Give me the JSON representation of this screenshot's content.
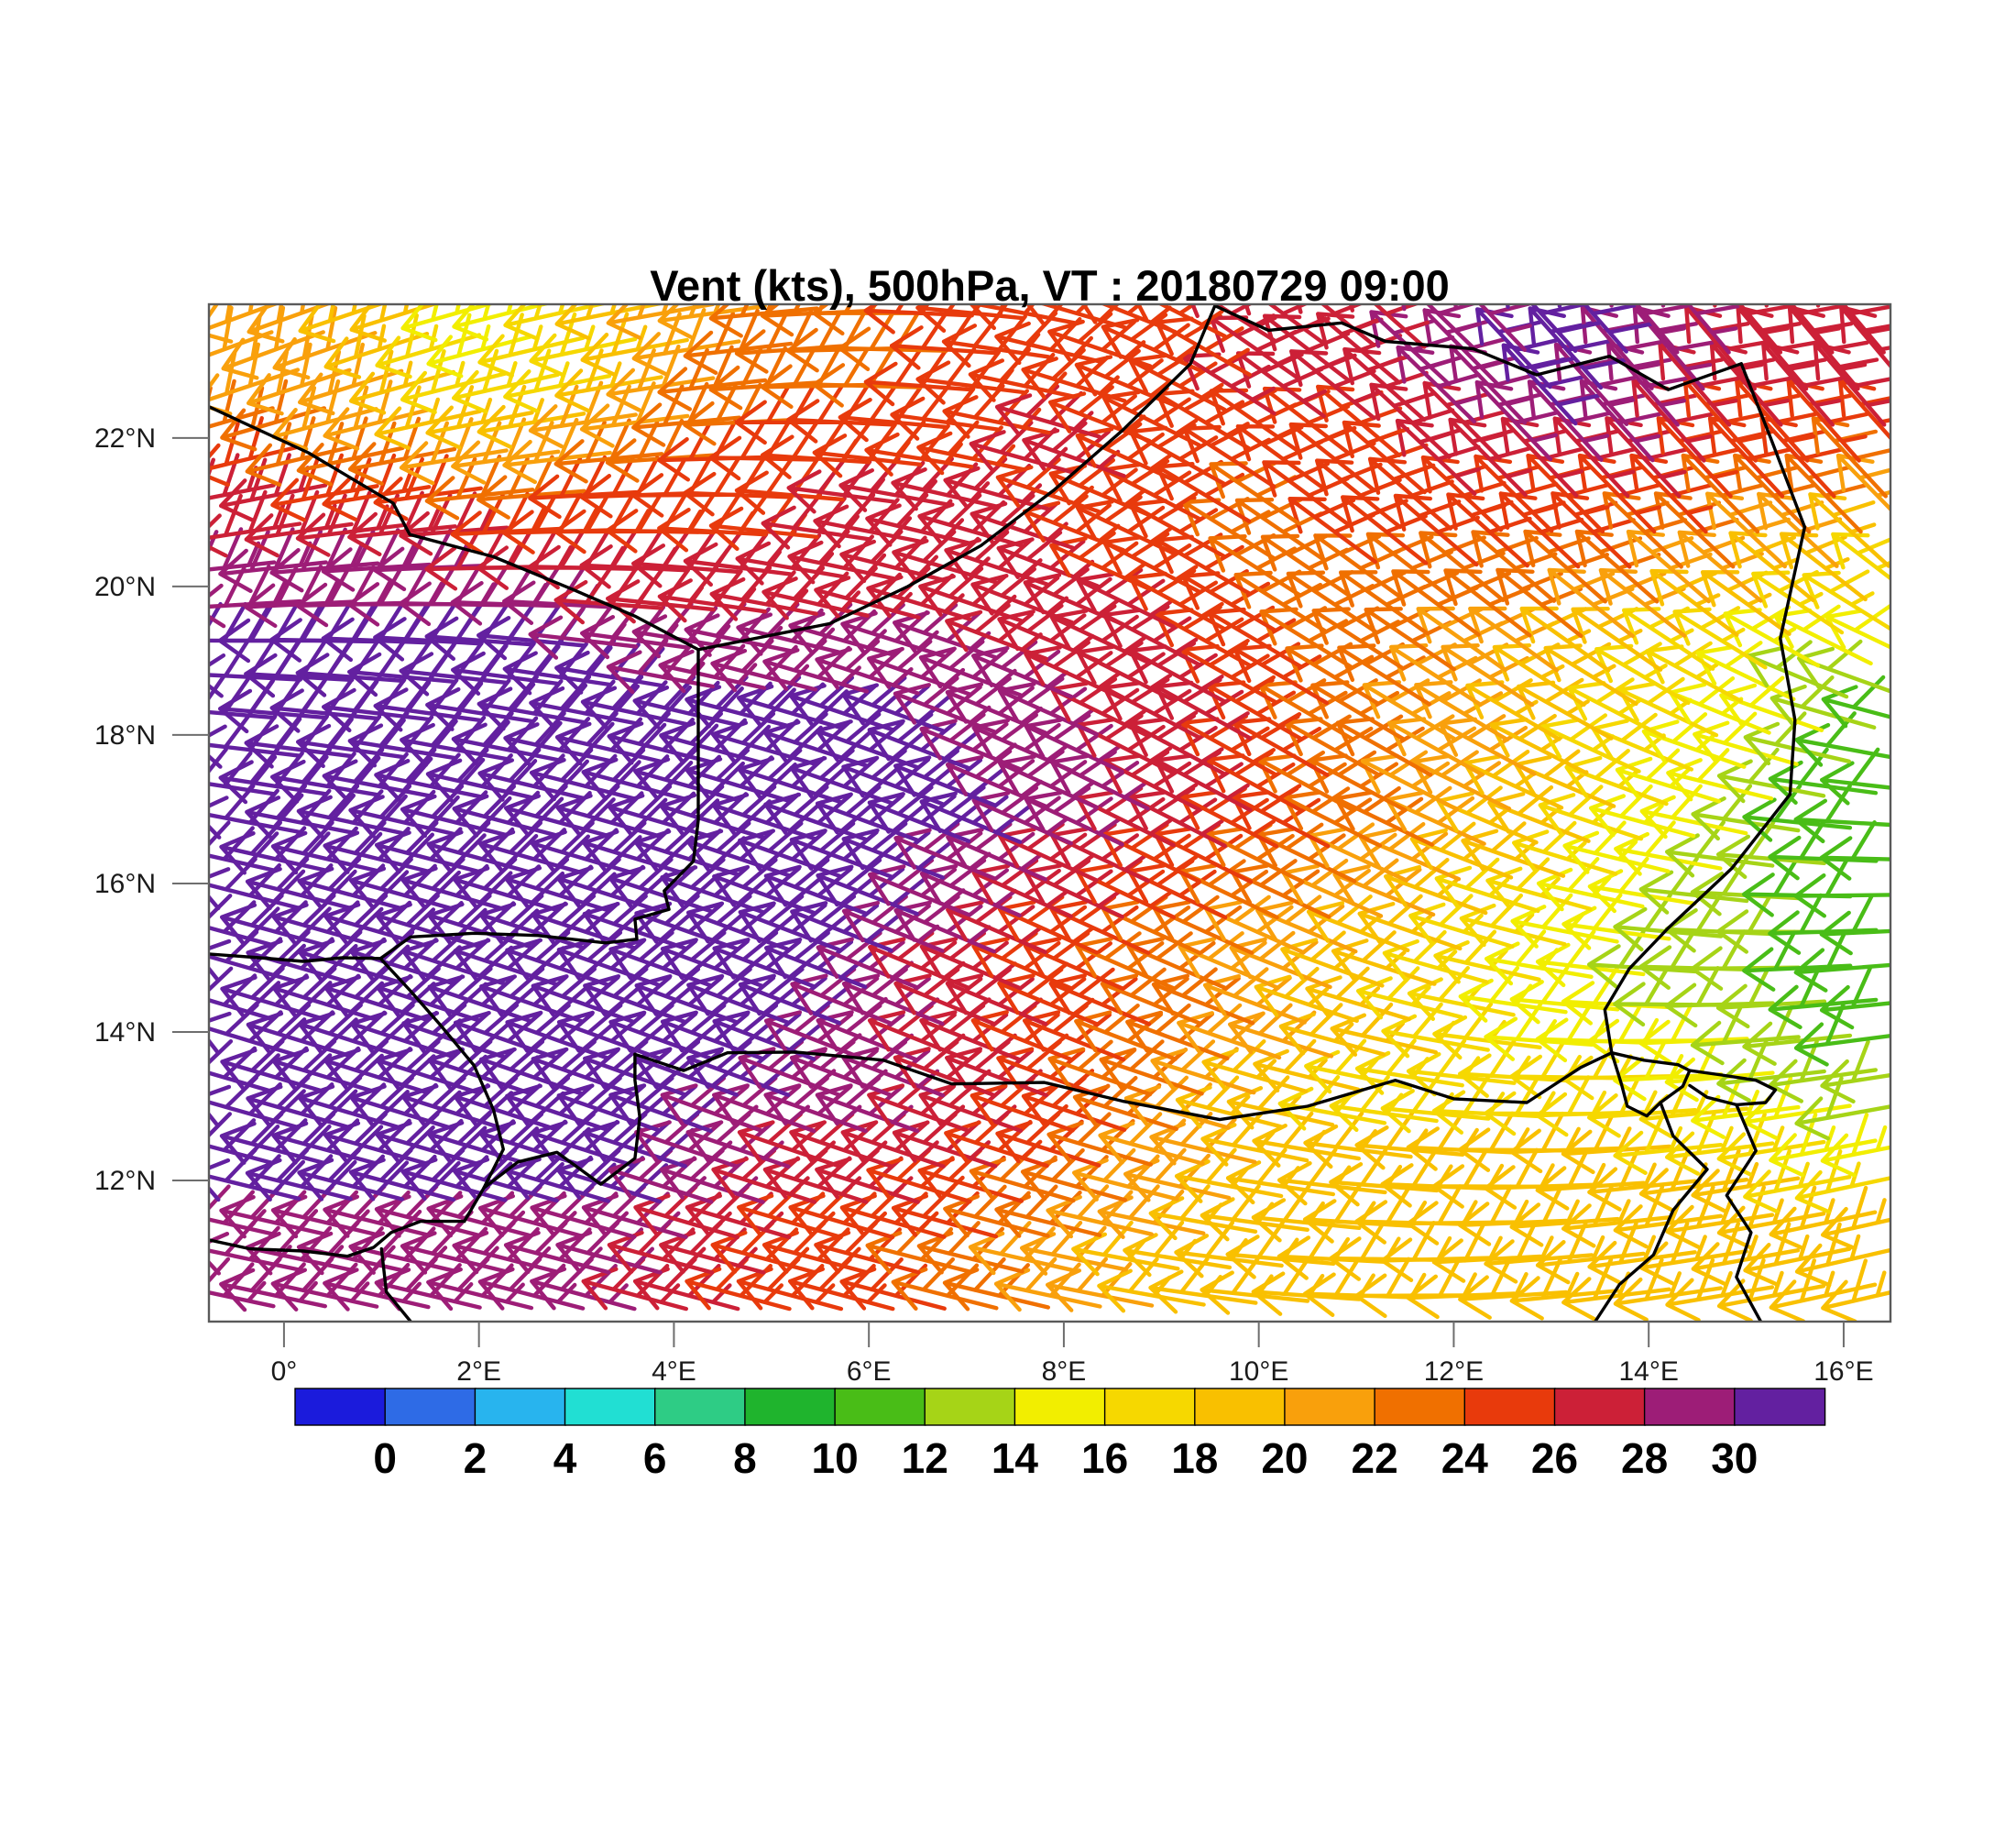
{
  "title": "Vent (kts), 500hPa, VT : 20180729  09:00",
  "chart_data": {
    "type": "wind_barb_map",
    "title": "Vent (kts), 500hPa, VT : 20180729  09:00",
    "variable": "Vent",
    "units": "kts",
    "level": "500hPa",
    "valid_time": "20180729 09:00",
    "lon_range": [
      -0.77,
      16.48
    ],
    "lat_range": [
      10.1,
      23.8
    ],
    "x_ticks": {
      "lons": [
        0,
        2,
        4,
        6,
        8,
        10,
        12,
        14,
        16
      ],
      "labels": [
        "0°",
        "2°E",
        "4°E",
        "6°E",
        "8°E",
        "10°E",
        "12°E",
        "14°E",
        "16°E"
      ]
    },
    "y_ticks": {
      "lats": [
        12,
        14,
        16,
        18,
        20,
        22
      ],
      "labels": [
        "12°N",
        "14°N",
        "16°N",
        "18°N",
        "20°N",
        "22°N"
      ]
    },
    "colorbar": {
      "boundary_labels": [
        "0",
        "2",
        "4",
        "6",
        "8",
        "10",
        "12",
        "14",
        "16",
        "18",
        "20",
        "22",
        "24",
        "26",
        "28",
        "30"
      ],
      "colors": [
        "#1b1bdc",
        "#2e6be6",
        "#28b4ee",
        "#21dfd3",
        "#2ecc85",
        "#1fb42d",
        "#49bd17",
        "#a6d417",
        "#f2ee00",
        "#f6d800",
        "#f9c000",
        "#f9a00c",
        "#f07000",
        "#e83a0c",
        "#cc2037",
        "#9d1d77",
        "#6320a0"
      ],
      "bin_width": 2
    },
    "grid": {
      "lons": [
        0,
        1,
        2,
        3,
        4,
        5,
        6,
        7,
        8,
        9,
        10,
        11,
        12,
        13,
        14,
        15,
        16
      ],
      "lats": [
        23,
        22,
        21,
        20,
        19,
        18,
        17,
        16,
        15,
        14,
        13,
        12,
        11
      ],
      "speed_kts": [
        [
          21,
          19,
          15,
          17,
          21,
          23,
          23,
          25,
          25,
          25,
          27,
          27,
          29,
          31,
          29,
          27,
          27
        ],
        [
          23,
          21,
          19,
          21,
          23,
          25,
          25,
          25,
          27,
          25,
          25,
          25,
          27,
          29,
          27,
          25,
          25
        ],
        [
          27,
          27,
          25,
          25,
          25,
          25,
          27,
          27,
          25,
          25,
          23,
          25,
          25,
          25,
          25,
          23,
          21
        ],
        [
          29,
          29,
          29,
          27,
          27,
          27,
          27,
          27,
          27,
          25,
          23,
          23,
          23,
          23,
          21,
          19,
          17
        ],
        [
          31,
          31,
          31,
          31,
          29,
          29,
          29,
          29,
          27,
          27,
          25,
          23,
          21,
          19,
          17,
          15,
          13
        ],
        [
          31,
          31,
          31,
          31,
          31,
          31,
          31,
          29,
          29,
          27,
          25,
          23,
          21,
          19,
          17,
          15,
          11
        ],
        [
          31,
          31,
          31,
          31,
          31,
          31,
          31,
          31,
          29,
          27,
          25,
          23,
          21,
          19,
          15,
          13,
          11
        ],
        [
          31,
          31,
          31,
          31,
          31,
          31,
          31,
          29,
          27,
          25,
          23,
          21,
          19,
          17,
          15,
          13,
          11
        ],
        [
          31,
          31,
          31,
          31,
          31,
          31,
          29,
          27,
          25,
          23,
          21,
          19,
          17,
          15,
          13,
          13,
          11
        ],
        [
          31,
          31,
          31,
          31,
          31,
          31,
          29,
          27,
          25,
          23,
          21,
          19,
          17,
          15,
          15,
          13,
          11
        ],
        [
          31,
          31,
          31,
          31,
          31,
          29,
          29,
          27,
          25,
          21,
          19,
          17,
          17,
          17,
          17,
          15,
          13
        ],
        [
          31,
          31,
          31,
          31,
          29,
          27,
          27,
          25,
          23,
          21,
          19,
          19,
          19,
          19,
          19,
          19,
          17
        ],
        [
          29,
          29,
          29,
          29,
          27,
          25,
          25,
          23,
          21,
          19,
          19,
          19,
          19,
          19,
          19,
          19,
          19
        ]
      ],
      "direction_from_deg": [
        [
          110,
          108,
          105,
          102,
          100,
          95,
          90,
          85,
          75,
          65,
          55,
          50,
          45,
          42,
          40,
          40,
          40
        ],
        [
          105,
          103,
          100,
          98,
          95,
          90,
          85,
          80,
          72,
          62,
          55,
          50,
          45,
          43,
          42,
          42,
          42
        ],
        [
          100,
          98,
          95,
          92,
          90,
          85,
          80,
          75,
          70,
          62,
          56,
          52,
          48,
          45,
          45,
          45,
          45
        ],
        [
          95,
          92,
          90,
          88,
          85,
          80,
          76,
          72,
          68,
          62,
          58,
          55,
          52,
          50,
          50,
          52,
          55
        ],
        [
          88,
          86,
          84,
          82,
          80,
          76,
          72,
          70,
          66,
          62,
          60,
          58,
          56,
          56,
          58,
          62,
          68
        ],
        [
          84,
          82,
          80,
          78,
          76,
          74,
          70,
          68,
          65,
          62,
          60,
          60,
          60,
          62,
          66,
          72,
          78
        ],
        [
          80,
          78,
          76,
          75,
          74,
          72,
          70,
          68,
          65,
          63,
          62,
          63,
          65,
          68,
          74,
          80,
          86
        ],
        [
          76,
          75,
          74,
          73,
          72,
          70,
          69,
          67,
          65,
          64,
          64,
          66,
          70,
          74,
          80,
          86,
          90
        ],
        [
          74,
          73,
          72,
          71,
          70,
          69,
          68,
          67,
          66,
          66,
          67,
          70,
          74,
          80,
          86,
          90,
          94
        ],
        [
          73,
          72,
          71,
          70,
          70,
          69,
          68,
          68,
          68,
          69,
          71,
          75,
          80,
          86,
          90,
          94,
          97
        ],
        [
          74,
          73,
          72,
          71,
          70,
          70,
          70,
          70,
          71,
          73,
          76,
          80,
          85,
          90,
          94,
          97,
          100
        ],
        [
          76,
          75,
          74,
          73,
          72,
          72,
          72,
          73,
          74,
          76,
          80,
          84,
          88,
          92,
          96,
          99,
          102
        ],
        [
          78,
          77,
          76,
          75,
          75,
          75,
          75,
          76,
          78,
          80,
          84,
          88,
          92,
          95,
          98,
          100,
          103
        ]
      ]
    },
    "borders": [
      [
        [
          -0.77,
          22.42
        ],
        [
          0.25,
          21.8
        ],
        [
          1.12,
          21.12
        ],
        [
          1.29,
          20.7
        ],
        [
          2.15,
          20.4
        ],
        [
          2.96,
          19.96
        ],
        [
          3.6,
          19.6
        ],
        [
          4.25,
          19.15
        ]
      ],
      [
        [
          4.25,
          19.15
        ],
        [
          4.25,
          16.85
        ],
        [
          4.2,
          16.3
        ],
        [
          3.9,
          15.9
        ],
        [
          3.95,
          15.65
        ],
        [
          3.6,
          15.52
        ],
        [
          3.62,
          15.25
        ],
        [
          3.3,
          15.2
        ],
        [
          2.6,
          15.3
        ],
        [
          1.95,
          15.33
        ],
        [
          1.3,
          15.28
        ],
        [
          0.99,
          14.99
        ]
      ],
      [
        [
          -0.77,
          15.05
        ],
        [
          -0.25,
          15.0
        ],
        [
          0.2,
          14.95
        ],
        [
          0.6,
          15.0
        ],
        [
          0.99,
          14.99
        ]
      ],
      [
        [
          0.99,
          14.99
        ],
        [
          1.3,
          14.55
        ],
        [
          1.6,
          14.1
        ],
        [
          1.95,
          13.55
        ],
        [
          2.15,
          12.95
        ],
        [
          2.25,
          12.42
        ],
        [
          2.05,
          11.9
        ],
        [
          1.85,
          11.45
        ]
      ],
      [
        [
          2.05,
          11.9
        ],
        [
          2.4,
          12.25
        ],
        [
          2.8,
          12.38
        ],
        [
          3.25,
          11.95
        ],
        [
          3.6,
          12.3
        ],
        [
          3.65,
          12.85
        ],
        [
          3.6,
          13.35
        ],
        [
          3.6,
          13.7
        ]
      ],
      [
        [
          -0.77,
          11.2
        ],
        [
          -0.35,
          11.08
        ],
        [
          0.2,
          11.05
        ],
        [
          0.65,
          10.98
        ],
        [
          0.92,
          11.1
        ],
        [
          1.1,
          11.3
        ],
        [
          1.4,
          11.45
        ],
        [
          1.85,
          11.45
        ]
      ],
      [
        [
          1.0,
          11.08
        ],
        [
          1.05,
          10.5
        ],
        [
          1.3,
          10.1
        ]
      ],
      [
        [
          3.6,
          13.7
        ],
        [
          4.1,
          13.48
        ],
        [
          4.55,
          13.72
        ],
        [
          5.25,
          13.73
        ],
        [
          6.15,
          13.62
        ],
        [
          6.85,
          13.3
        ],
        [
          7.8,
          13.32
        ],
        [
          8.6,
          13.07
        ],
        [
          9.6,
          12.82
        ],
        [
          10.5,
          13.0
        ],
        [
          11.4,
          13.35
        ],
        [
          12.0,
          13.1
        ],
        [
          12.75,
          13.05
        ],
        [
          13.3,
          13.52
        ],
        [
          13.62,
          13.72
        ]
      ],
      [
        [
          4.25,
          19.15
        ],
        [
          5.6,
          19.5
        ],
        [
          6.4,
          20.0
        ],
        [
          7.15,
          20.55
        ],
        [
          7.9,
          21.3
        ],
        [
          8.6,
          22.1
        ],
        [
          9.3,
          23.0
        ],
        [
          9.55,
          23.78
        ]
      ],
      [
        [
          9.55,
          23.78
        ],
        [
          10.1,
          23.45
        ],
        [
          10.85,
          23.55
        ],
        [
          11.3,
          23.3
        ],
        [
          12.2,
          23.2
        ],
        [
          12.85,
          22.85
        ],
        [
          13.6,
          23.1
        ],
        [
          14.2,
          22.65
        ],
        [
          14.95,
          23.0
        ]
      ],
      [
        [
          14.95,
          23.0
        ],
        [
          15.25,
          22.0
        ],
        [
          15.6,
          20.8
        ],
        [
          15.35,
          19.3
        ],
        [
          15.5,
          18.2
        ],
        [
          15.45,
          17.2
        ],
        [
          14.85,
          16.2
        ],
        [
          14.2,
          15.4
        ],
        [
          13.8,
          14.85
        ],
        [
          13.55,
          14.3
        ],
        [
          13.62,
          13.72
        ]
      ],
      [
        [
          13.62,
          13.72
        ],
        [
          13.95,
          13.62
        ],
        [
          14.3,
          13.56
        ],
        [
          14.42,
          13.48
        ],
        [
          14.35,
          13.27
        ],
        [
          14.12,
          13.05
        ],
        [
          13.98,
          12.87
        ],
        [
          13.78,
          13.0
        ],
        [
          13.72,
          13.3
        ],
        [
          13.62,
          13.72
        ]
      ],
      [
        [
          14.42,
          13.48
        ],
        [
          14.75,
          13.42
        ],
        [
          15.1,
          13.35
        ],
        [
          15.3,
          13.22
        ],
        [
          15.2,
          13.05
        ],
        [
          14.9,
          13.02
        ],
        [
          14.6,
          13.12
        ],
        [
          14.42,
          13.28
        ]
      ],
      [
        [
          14.9,
          13.02
        ],
        [
          15.1,
          12.4
        ],
        [
          14.8,
          11.8
        ],
        [
          15.05,
          11.3
        ],
        [
          14.9,
          10.7
        ],
        [
          15.15,
          10.1
        ]
      ],
      [
        [
          14.12,
          13.05
        ],
        [
          14.25,
          12.6
        ],
        [
          14.6,
          12.15
        ],
        [
          14.25,
          11.6
        ],
        [
          14.05,
          11.0
        ],
        [
          13.7,
          10.6
        ],
        [
          13.45,
          10.1
        ]
      ]
    ],
    "style": {
      "border_color": "#000000",
      "frame_color": "#5a5a5a",
      "tick_color": "#6e6e6e",
      "label_color": "#1a1a1a",
      "background": "#ffffff"
    }
  }
}
